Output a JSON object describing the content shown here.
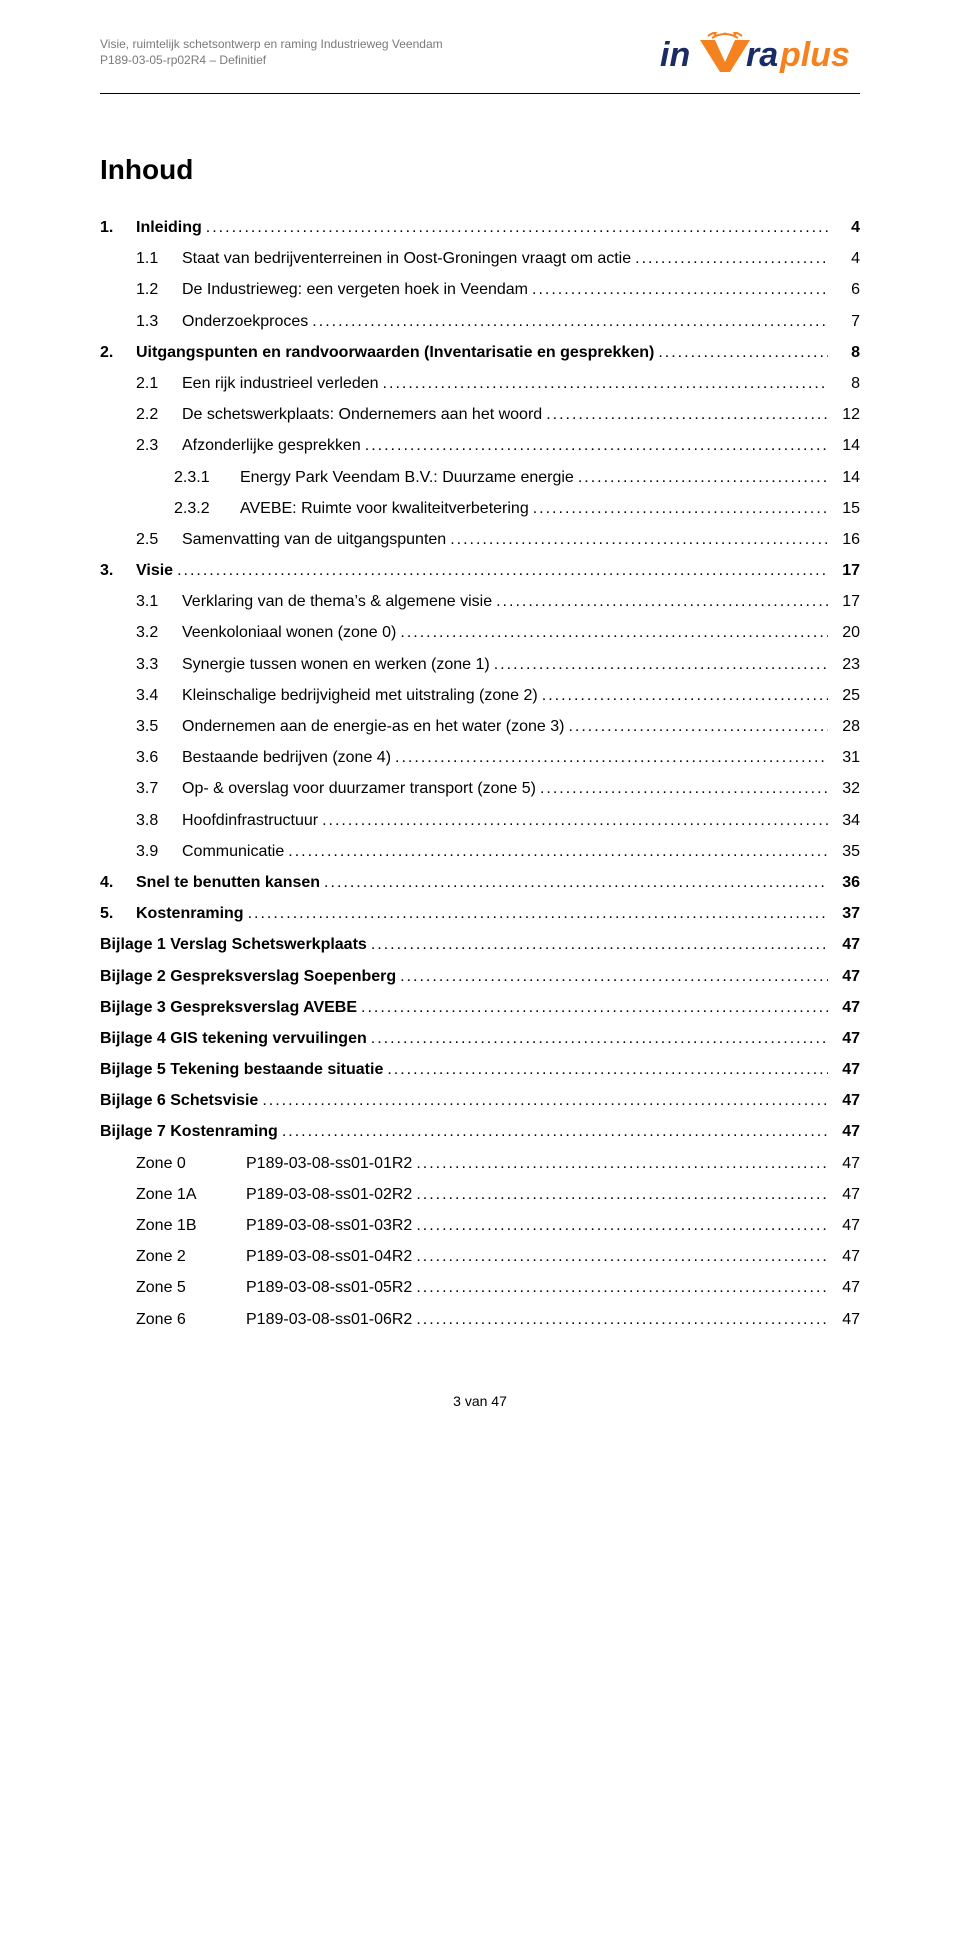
{
  "header": {
    "line1": "Visie, ruimtelijk schetsontwerp en raming Industrieweg Veendam",
    "line2": "P189-03-05-rp02R4 – Definitief",
    "logo_text1": "in",
    "logo_text2": "ra",
    "logo_text3": "plus",
    "logo_accent_color": "#f58220",
    "logo_navy_color": "#1a2b66"
  },
  "title": "Inhoud",
  "toc": [
    {
      "level": 1,
      "num": "1.",
      "label": "Inleiding",
      "page": "4",
      "bold": true
    },
    {
      "level": 2,
      "num": "1.1",
      "label": "Staat van bedrijventerreinen in Oost-Groningen vraagt om actie",
      "page": "4"
    },
    {
      "level": 2,
      "num": "1.2",
      "label": "De Industrieweg: een vergeten hoek in Veendam",
      "page": "6"
    },
    {
      "level": 2,
      "num": "1.3",
      "label": "Onderzoekproces",
      "page": "7"
    },
    {
      "level": 1,
      "num": "2.",
      "label": "Uitgangspunten en randvoorwaarden (Inventarisatie en gesprekken)",
      "page": "8",
      "bold": true
    },
    {
      "level": 2,
      "num": "2.1",
      "label": "Een rijk industrieel verleden",
      "page": "8"
    },
    {
      "level": 2,
      "num": "2.2",
      "label": "De schetswerkplaats: Ondernemers aan het woord",
      "page": "12"
    },
    {
      "level": 2,
      "num": "2.3",
      "label": "Afzonderlijke gesprekken",
      "page": "14"
    },
    {
      "level": 3,
      "num": "2.3.1",
      "label": "Energy Park Veendam B.V.: Duurzame energie",
      "page": "14"
    },
    {
      "level": 3,
      "num": "2.3.2",
      "label": "AVEBE: Ruimte voor kwaliteitverbetering",
      "page": "15"
    },
    {
      "level": 2,
      "num": "2.5",
      "label": "Samenvatting van de uitgangspunten",
      "page": "16"
    },
    {
      "level": 1,
      "num": "3.",
      "label": "Visie",
      "page": "17",
      "bold": true
    },
    {
      "level": 2,
      "num": "3.1",
      "label": "Verklaring van de thema’s & algemene visie",
      "page": "17"
    },
    {
      "level": 2,
      "num": "3.2",
      "label": "Veenkoloniaal wonen (zone 0)",
      "page": "20"
    },
    {
      "level": 2,
      "num": "3.3",
      "label": "Synergie tussen wonen en werken (zone 1)",
      "page": "23"
    },
    {
      "level": 2,
      "num": "3.4",
      "label": "Kleinschalige bedrijvigheid met uitstraling (zone 2)",
      "page": "25"
    },
    {
      "level": 2,
      "num": "3.5",
      "label": "Ondernemen aan de energie-as en het water (zone 3)",
      "page": "28"
    },
    {
      "level": 2,
      "num": "3.6",
      "label": "Bestaande bedrijven (zone 4)",
      "page": "31"
    },
    {
      "level": 2,
      "num": "3.7",
      "label": "Op- & overslag voor duurzamer transport (zone 5)",
      "page": "32"
    },
    {
      "level": 2,
      "num": "3.8",
      "label": "Hoofdinfrastructuur",
      "page": "34"
    },
    {
      "level": 2,
      "num": "3.9",
      "label": "Communicatie",
      "page": "35"
    },
    {
      "level": 1,
      "num": "4.",
      "label": "Snel te benutten kansen",
      "page": "36",
      "bold": true
    },
    {
      "level": 1,
      "num": "5.",
      "label": "Kostenraming",
      "page": "37",
      "bold": true
    },
    {
      "level": 0,
      "label": "Bijlage 1 Verslag Schetswerkplaats",
      "page": "47",
      "bold": true
    },
    {
      "level": 0,
      "label": "Bijlage 2 Gespreksverslag Soepenberg",
      "page": "47",
      "bold": true
    },
    {
      "level": 0,
      "label": "Bijlage 3 Gespreksverslag AVEBE",
      "page": "47",
      "bold": true
    },
    {
      "level": 0,
      "label": "Bijlage 4 GIS tekening vervuilingen",
      "page": "47",
      "bold": true
    },
    {
      "level": 0,
      "label": "Bijlage 5 Tekening bestaande situatie",
      "page": "47",
      "bold": true
    },
    {
      "level": 0,
      "label": "Bijlage 6 Schetsvisie",
      "page": "47",
      "bold": true
    },
    {
      "level": 0,
      "label": "Bijlage 7 Kostenraming",
      "page": "47",
      "bold": true
    }
  ],
  "zones": [
    {
      "col1": "Zone 0",
      "col2": "P189-03-08-ss01-01R2",
      "page": "47"
    },
    {
      "col1": "Zone 1A",
      "col2": "P189-03-08-ss01-02R2",
      "page": "47"
    },
    {
      "col1": "Zone 1B",
      "col2": "P189-03-08-ss01-03R2",
      "page": "47"
    },
    {
      "col1": "Zone 2",
      "col2": "P189-03-08-ss01-04R2",
      "page": "47"
    },
    {
      "col1": "Zone 5",
      "col2": "P189-03-08-ss01-05R2",
      "page": "47"
    },
    {
      "col1": "Zone 6",
      "col2": "P189-03-08-ss01-06R2",
      "page": "47"
    }
  ],
  "footer": "3 van 47"
}
